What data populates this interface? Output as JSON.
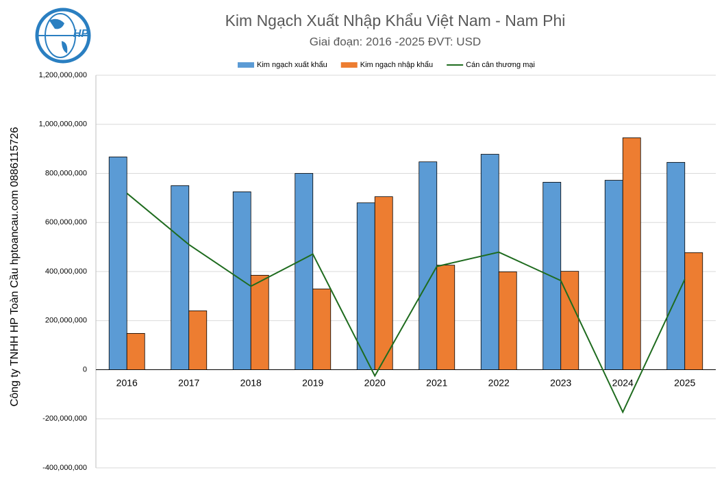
{
  "logo_text": "HP",
  "side_label": "Công ty TNHH HP Toàn Cầu hptoancau.com 0886115726",
  "chart_data": {
    "type": "bar_line",
    "title": "Kim Ngạch Xuất Nhập Khẩu Việt Nam - Nam Phi",
    "subtitle": "Giai đoạn: 2016 -2025  ĐVT: USD",
    "categories": [
      "2016",
      "2017",
      "2018",
      "2019",
      "2020",
      "2021",
      "2022",
      "2023",
      "2024",
      "2025"
    ],
    "series": [
      {
        "name": "Kim ngạch xuất khẩu",
        "color": "#5b9bd5",
        "kind": "bar",
        "values": [
          867000000,
          750000000,
          725000000,
          800000000,
          680000000,
          847000000,
          878000000,
          764000000,
          772000000,
          845000000
        ]
      },
      {
        "name": "Kim ngạch nhập khẩu",
        "color": "#ed7d31",
        "kind": "bar",
        "values": [
          148000000,
          240000000,
          385000000,
          329000000,
          705000000,
          426000000,
          399000000,
          401000000,
          945000000,
          477000000
        ]
      },
      {
        "name": "Cán cân thương mại",
        "color": "#1e6b1e",
        "kind": "line",
        "values": [
          719000000,
          510000000,
          340000000,
          471000000,
          -25000000,
          421000000,
          479000000,
          363000000,
          -173000000,
          368000000
        ]
      }
    ],
    "ylim": [
      -400000000,
      1200000000
    ],
    "yticks": [
      {
        "value": -400000000,
        "label": "-400,000,000"
      },
      {
        "value": -200000000,
        "label": "-200,000,000"
      },
      0,
      {
        "value": 200000000,
        "label": "200,000,000"
      },
      {
        "value": 400000000,
        "label": "400,000,000"
      },
      {
        "value": 600000000,
        "label": "600,000,000"
      },
      {
        "value": 800000000,
        "label": "800,000,000"
      },
      {
        "value": 1000000000,
        "label": "1,000,000,000"
      },
      {
        "value": 1200000000,
        "label": "1,200,000,000"
      }
    ],
    "grid": true,
    "legend": "top"
  }
}
